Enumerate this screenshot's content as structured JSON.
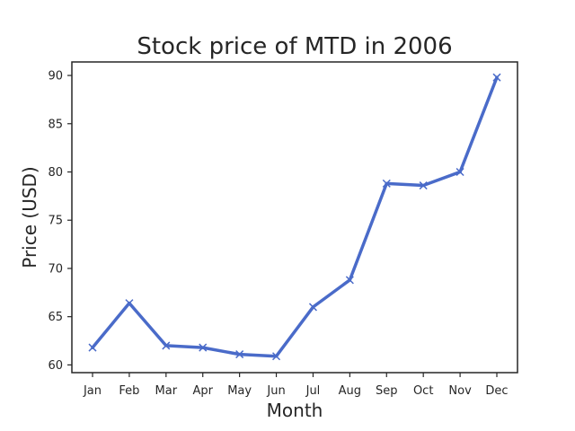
{
  "chart_data": {
    "type": "line",
    "title": "Stock price of MTD in 2006",
    "xlabel": "Month",
    "ylabel": "Price (USD)",
    "categories": [
      "Jan",
      "Feb",
      "Mar",
      "Apr",
      "May",
      "Jun",
      "Jul",
      "Aug",
      "Sep",
      "Oct",
      "Nov",
      "Dec"
    ],
    "series": [
      {
        "values": [
          61.8,
          66.4,
          62.0,
          61.8,
          61.1,
          60.9,
          66.0,
          68.8,
          78.8,
          78.6,
          80.0,
          89.8
        ],
        "color": "#4a6bc9",
        "marker": "x"
      }
    ],
    "ylim": [
      59.2,
      91.4
    ],
    "yticks": [
      60,
      65,
      70,
      75,
      80,
      85,
      90
    ],
    "grid": false,
    "legend": "none"
  }
}
